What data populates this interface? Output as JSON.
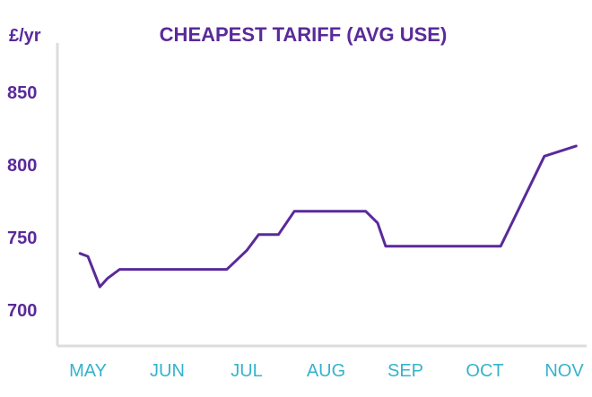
{
  "chart_data": {
    "type": "line",
    "title": "CHEAPEST TARIFF (AVG USE)",
    "ylabel": "£/yr",
    "xlabel": "",
    "ylim": [
      675,
      880
    ],
    "xlim": [
      0,
      6.45
    ],
    "y_ticks": [
      700,
      750,
      800,
      850
    ],
    "x_tick_labels": [
      "MAY",
      "JUN",
      "JUL",
      "AUG",
      "SEP",
      "OCT",
      "NOV"
    ],
    "x_tick_positions": [
      0,
      1,
      2,
      3,
      4,
      5,
      6
    ],
    "grid": false,
    "series": [
      {
        "color": "#5a2a9a",
        "x": [
          -0.1,
          0.0,
          0.15,
          0.25,
          0.4,
          1.0,
          1.75,
          2.0,
          2.15,
          2.4,
          2.6,
          3.0,
          3.25,
          3.3,
          3.5,
          3.65,
          3.75,
          4.7,
          5.2,
          5.75,
          6.15
        ],
        "y": [
          739,
          737,
          716,
          722,
          728,
          728,
          728,
          741,
          752,
          752,
          768,
          768,
          768,
          768,
          768,
          760,
          744,
          744,
          744,
          806,
          813
        ]
      }
    ]
  }
}
